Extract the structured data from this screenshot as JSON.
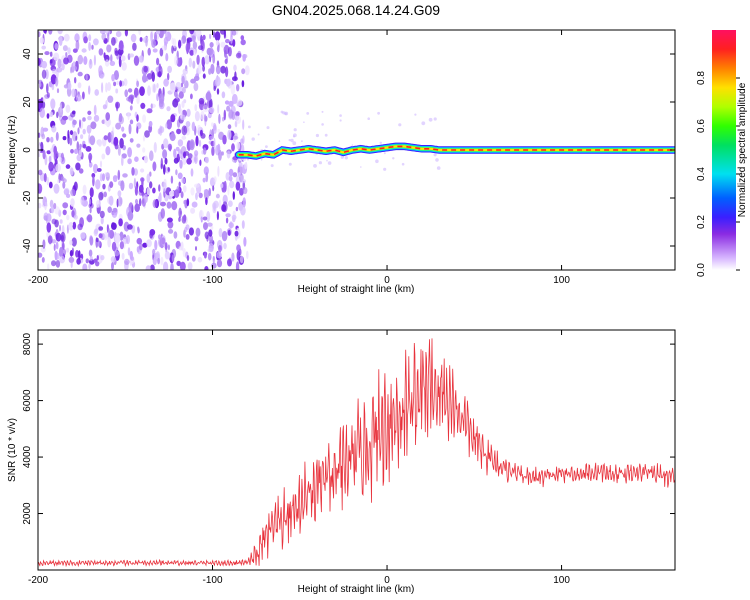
{
  "title": "GN04.2025.068.14.24.G09",
  "chart_data": [
    {
      "type": "heatmap",
      "xlabel": "Height of straight line (km)",
      "ylabel": "Frequency (Hz)",
      "xlim": [
        -200,
        165
      ],
      "ylim": [
        -50,
        50
      ],
      "xticks": [
        -200,
        -100,
        0,
        100
      ],
      "yticks": [
        -40,
        -20,
        0,
        20,
        40
      ],
      "noise_region_x": [
        -200,
        -80
      ],
      "signal_ridge": {
        "x": [
          -85,
          -80,
          -75,
          -70,
          -65,
          -60,
          -55,
          -50,
          -45,
          -40,
          -35,
          -30,
          -25,
          -20,
          -15,
          -10,
          -5,
          0,
          5,
          10,
          15,
          20,
          25,
          30,
          40,
          50,
          60,
          80,
          100,
          120,
          140,
          165
        ],
        "y": [
          -2,
          -2,
          -2.5,
          -1.5,
          -2,
          0,
          -0.5,
          0,
          0.5,
          0,
          -0.5,
          0,
          -1,
          0,
          0.5,
          0,
          0.5,
          1,
          1.5,
          1.5,
          1,
          0.5,
          0.5,
          0,
          0,
          0,
          0,
          0,
          0,
          0,
          0,
          0
        ]
      },
      "colorbar": {
        "label": "Normalized spectral amplitude",
        "ticks": [
          0.0,
          0.2,
          0.4,
          0.6,
          0.8
        ],
        "range": [
          0,
          1
        ]
      }
    },
    {
      "type": "line",
      "xlabel": "Height of straight line (km)",
      "ylabel": "SNR (10 * v/v)",
      "xlim": [
        -200,
        165
      ],
      "ylim": [
        0,
        8500
      ],
      "xticks": [
        -200,
        -100,
        0,
        100
      ],
      "yticks": [
        2000,
        4000,
        6000,
        8000
      ],
      "series": [
        {
          "color": "#e8323c",
          "x": [
            -200,
            -180,
            -160,
            -140,
            -120,
            -100,
            -90,
            -80,
            -75,
            -70,
            -65,
            -60,
            -55,
            -50,
            -45,
            -40,
            -35,
            -30,
            -25,
            -20,
            -15,
            -10,
            -5,
            0,
            5,
            10,
            15,
            20,
            25,
            30,
            35,
            40,
            45,
            50,
            55,
            60,
            65,
            70,
            80,
            90,
            100,
            110,
            120,
            130,
            140,
            150,
            160,
            165
          ],
          "values": [
            250,
            250,
            250,
            250,
            250,
            250,
            250,
            270,
            500,
            1100,
            1500,
            1700,
            2000,
            2400,
            2700,
            2900,
            3100,
            3300,
            3500,
            3900,
            4200,
            4500,
            4800,
            5200,
            5400,
            5700,
            6000,
            6400,
            6500,
            6300,
            6100,
            5700,
            5200,
            4600,
            4200,
            3900,
            3700,
            3500,
            3300,
            3300,
            3400,
            3400,
            3500,
            3400,
            3400,
            3500,
            3300,
            3300
          ],
          "amplitude": [
            80,
            80,
            80,
            80,
            80,
            80,
            80,
            80,
            400,
            700,
            800,
            900,
            1000,
            1100,
            1100,
            1200,
            1300,
            1400,
            1500,
            1600,
            1600,
            1700,
            1800,
            1800,
            1800,
            1800,
            1800,
            1700,
            1600,
            1500,
            1300,
            1100,
            900,
            700,
            600,
            500,
            400,
            350,
            300,
            300,
            300,
            300,
            300,
            300,
            300,
            300,
            300,
            300
          ]
        }
      ]
    }
  ]
}
